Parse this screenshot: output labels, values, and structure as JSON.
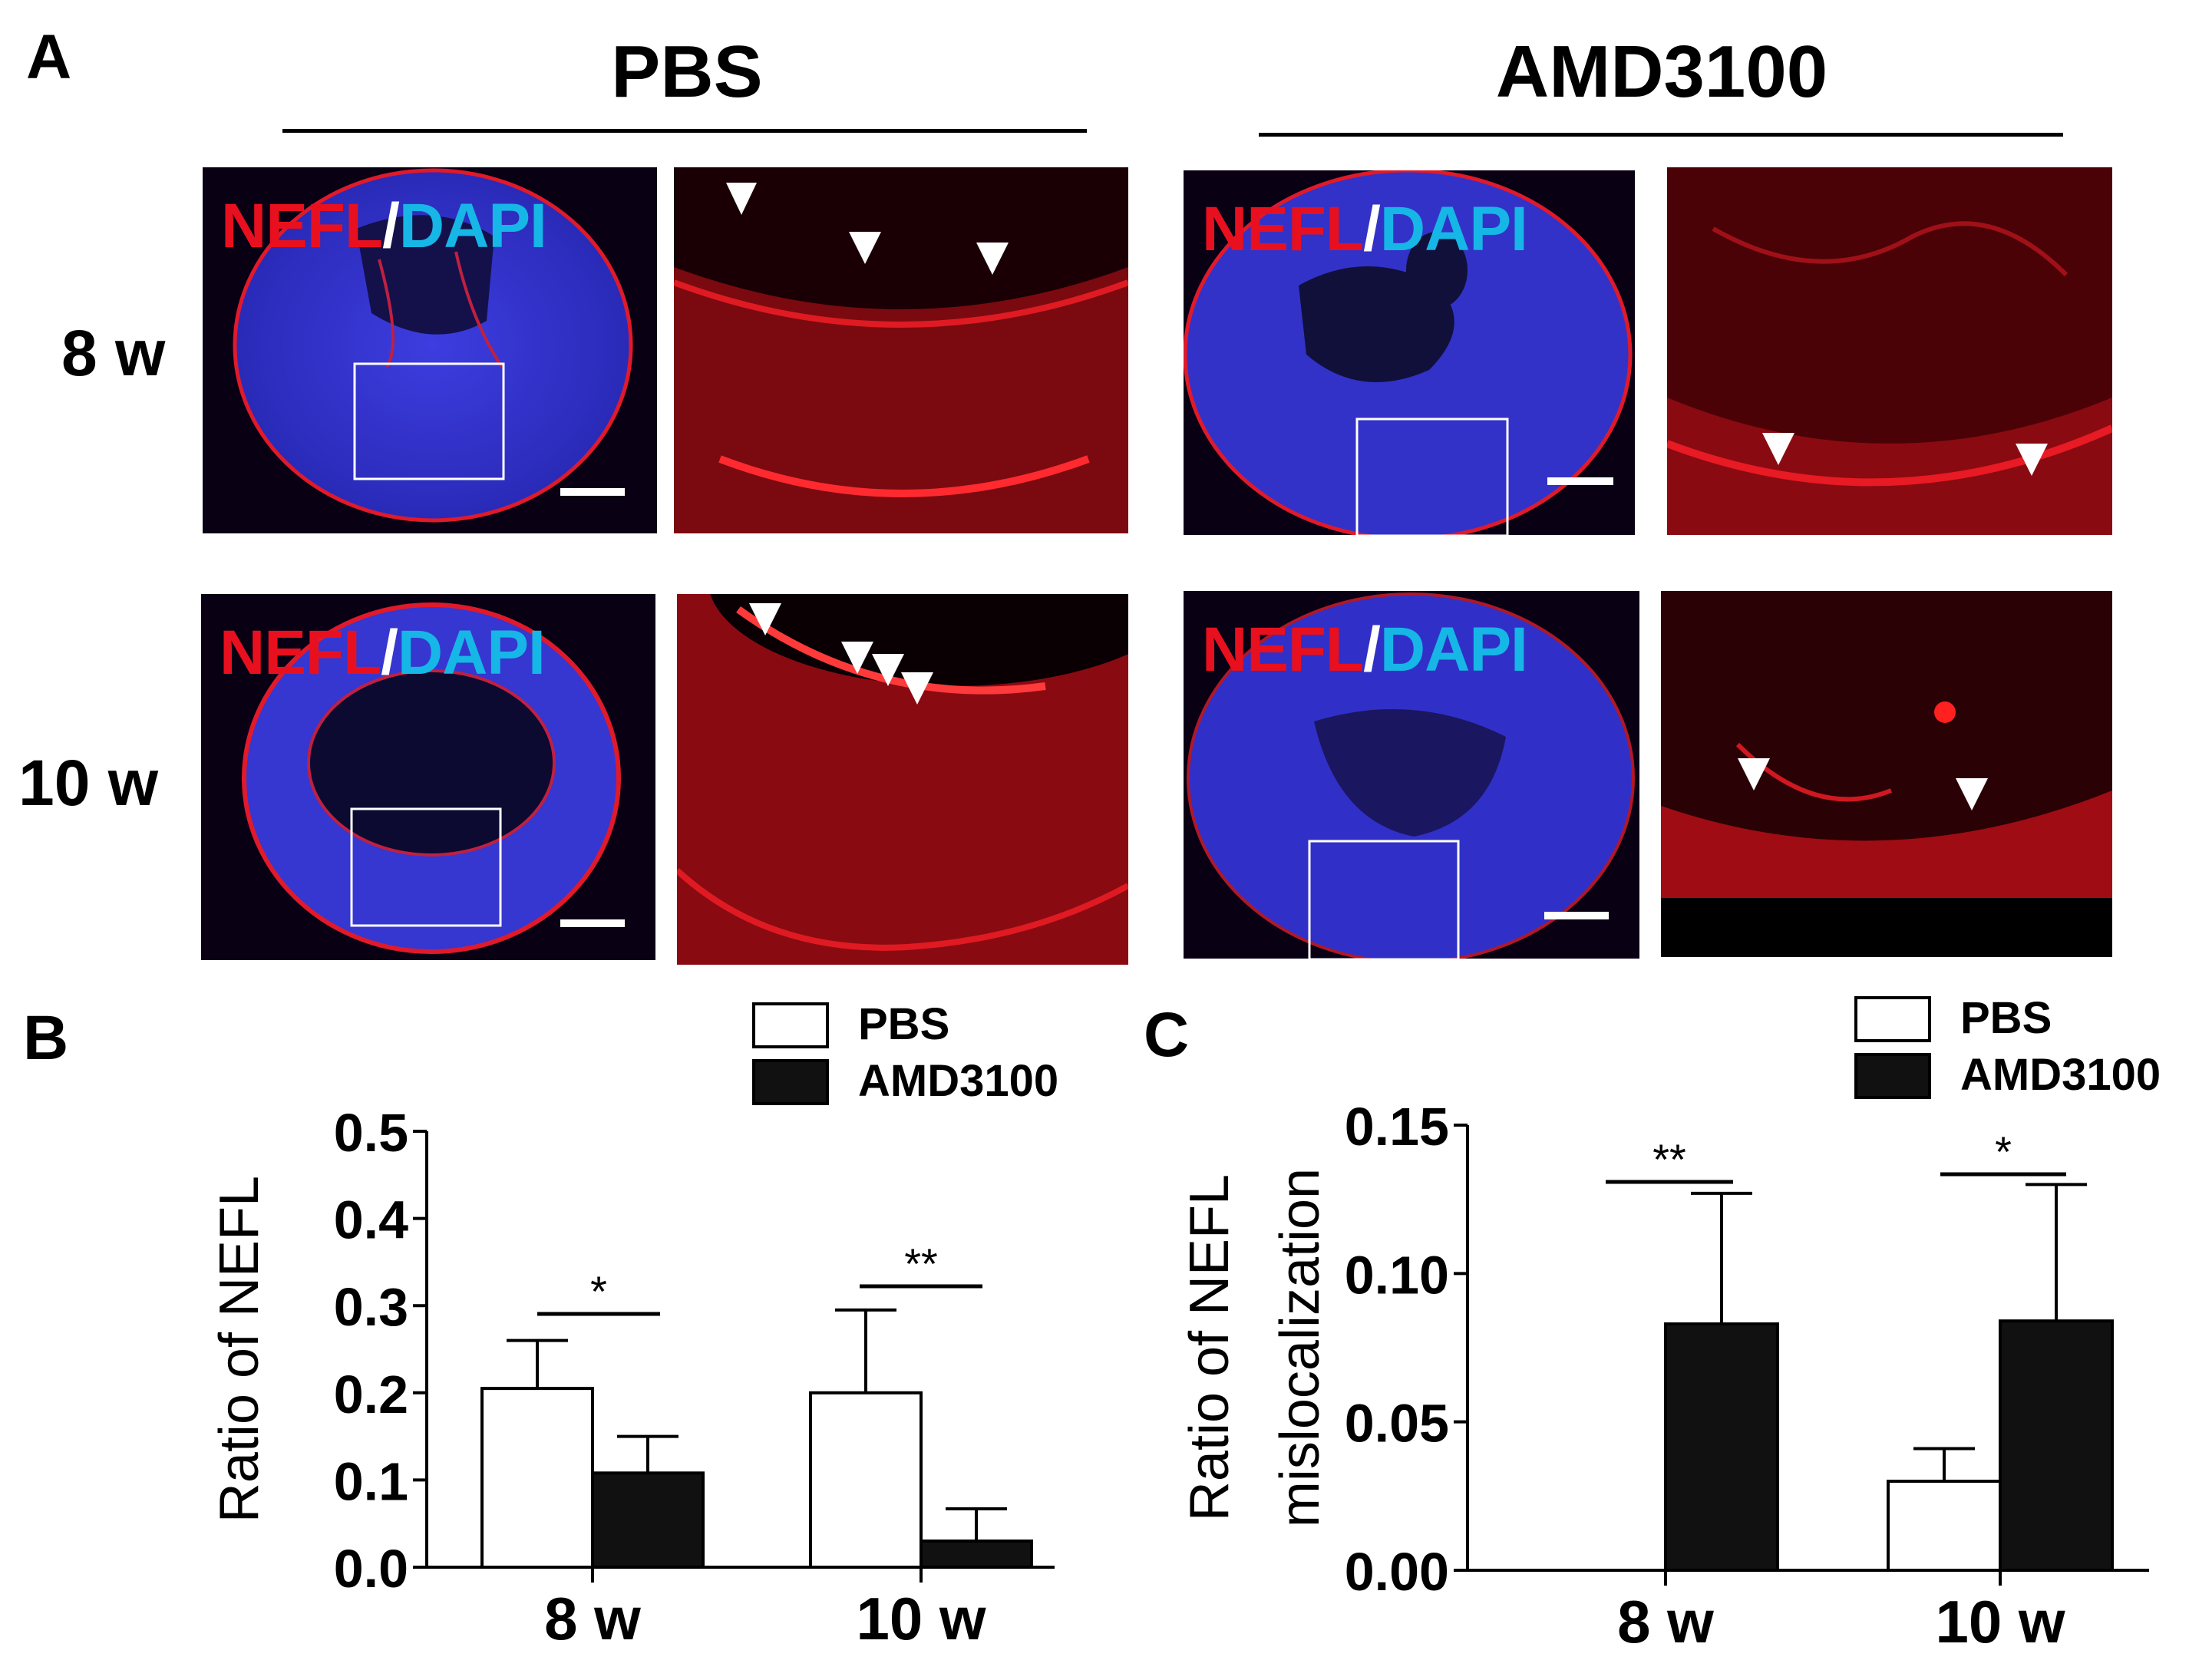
{
  "panels": {
    "a": {
      "letter": "A",
      "groups": [
        "PBS",
        "AMD3100"
      ],
      "rows": [
        "8 w",
        "10 w"
      ],
      "stain": {
        "part1": "NEFL",
        "sep": "/",
        "part2": "DAPI"
      },
      "colors": {
        "nefl": "#e8101e",
        "dapi": "#16b6e6",
        "sep": "#ffffff"
      }
    },
    "b": {
      "letter": "B"
    },
    "c": {
      "letter": "C"
    }
  },
  "chart_data": [
    {
      "type": "bar",
      "panel": "B",
      "categories": [
        "8 w",
        "10 w"
      ],
      "series": [
        {
          "name": "PBS",
          "values": [
            0.205,
            0.2
          ],
          "error": [
            0.055,
            0.095
          ],
          "fill": "#ffffff"
        },
        {
          "name": "AMD3100",
          "values": [
            0.108,
            0.03
          ],
          "error": [
            0.042,
            0.037
          ],
          "fill": "#111111"
        }
      ],
      "ylabel": "Ratio of NEFL",
      "ylim": [
        0,
        0.5
      ],
      "yticks": [
        0.0,
        0.1,
        0.2,
        0.3,
        0.4,
        0.5
      ],
      "ytick_labels": [
        "0.0",
        "0.1",
        "0.2",
        "0.3",
        "0.4",
        "0.5"
      ],
      "significance": [
        "*",
        "**"
      ],
      "legend_position": "top-right",
      "grid": false
    },
    {
      "type": "bar",
      "panel": "C",
      "categories": [
        "8 w",
        "10 w"
      ],
      "series": [
        {
          "name": "PBS",
          "values": [
            0.0,
            0.03
          ],
          "error": [
            0.0,
            0.011
          ],
          "fill": "#ffffff"
        },
        {
          "name": "AMD3100",
          "values": [
            0.083,
            0.084
          ],
          "error": [
            0.044,
            0.046
          ],
          "fill": "#111111"
        }
      ],
      "ylabel": [
        "Ratio of NEFL",
        "mislocalization"
      ],
      "ylim": [
        0,
        0.15
      ],
      "yticks": [
        0.0,
        0.05,
        0.1,
        0.15
      ],
      "ytick_labels": [
        "0.00",
        "0.05",
        "0.10",
        "0.15"
      ],
      "significance": [
        "**",
        "*"
      ],
      "legend_position": "top-right",
      "grid": false
    }
  ]
}
